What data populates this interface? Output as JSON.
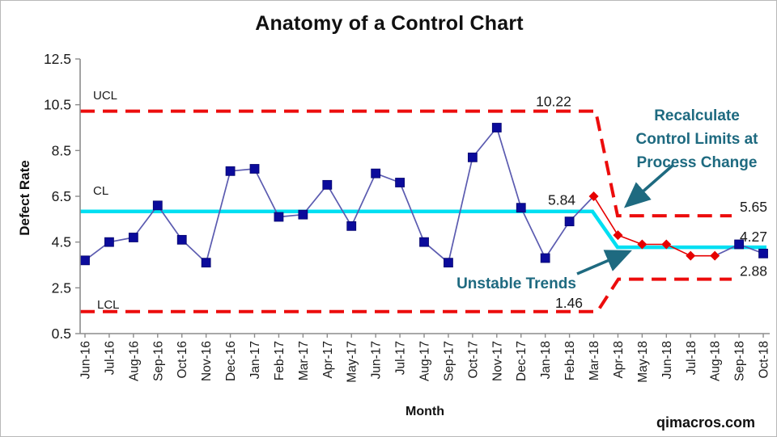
{
  "title": "Anatomy of a Control Chart",
  "watermark": "qimacros.com",
  "annotations": {
    "recalc": {
      "lines": [
        "Recalculate",
        "Control Limits at",
        "Process Change"
      ]
    },
    "unstable": {
      "text": "Unstable Trends"
    }
  },
  "colors": {
    "limit_red": "#ec0c0c",
    "center_cyan": "#00dff2",
    "marker_navy": "#0b0b9b",
    "line_slate": "#5b5bb0",
    "unstable_red": "#e60000",
    "annotation_teal": "#1e6a80",
    "axis_gray": "#8c8c8c",
    "text_dark": "#1a1a1a",
    "limit_label_gray": "#3d3d3d"
  },
  "chart_data": {
    "type": "line",
    "title": "Anatomy of a Control Chart",
    "xlabel": "Month",
    "ylabel": "Defect Rate",
    "ylim": [
      0.5,
      12.5
    ],
    "yticks": [
      12.5,
      10.5,
      8.5,
      6.5,
      4.5,
      2.5,
      0.5
    ],
    "grid": false,
    "legend": "none",
    "categories": [
      "Jun-16",
      "Jul-16",
      "Aug-16",
      "Sep-16",
      "Oct-16",
      "Nov-16",
      "Dec-16",
      "Jan-17",
      "Feb-17",
      "Mar-17",
      "Apr-17",
      "May-17",
      "Jun-17",
      "Jul-17",
      "Aug-17",
      "Sep-17",
      "Oct-17",
      "Nov-17",
      "Dec-17",
      "Jan-18",
      "Feb-18",
      "Mar-18",
      "Apr-18",
      "May-18",
      "Jun-18",
      "Jul-18",
      "Aug-18",
      "Sep-18",
      "Oct-18"
    ],
    "series": [
      {
        "name": "Defect Rate",
        "values": [
          3.7,
          4.5,
          4.7,
          6.1,
          4.6,
          3.6,
          7.6,
          7.7,
          5.6,
          5.7,
          7.0,
          5.2,
          7.5,
          7.1,
          4.5,
          3.6,
          8.2,
          9.5,
          6.0,
          3.8,
          5.4,
          6.5,
          4.8,
          4.4,
          4.4,
          3.9,
          3.9,
          4.4,
          4.0
        ]
      }
    ],
    "unstable_point_indices": [
      21,
      22,
      23,
      24,
      25,
      26
    ],
    "phase_change_between": [
      "Mar-18",
      "Apr-18"
    ],
    "control_limits": {
      "phase1": {
        "ucl": 10.22,
        "cl": 5.84,
        "lcl": 1.46
      },
      "phase2": {
        "ucl": 5.65,
        "cl": 4.27,
        "lcl": 2.88
      }
    },
    "limit_names": {
      "ucl": "UCL",
      "cl": "CL",
      "lcl": "LCL"
    }
  }
}
